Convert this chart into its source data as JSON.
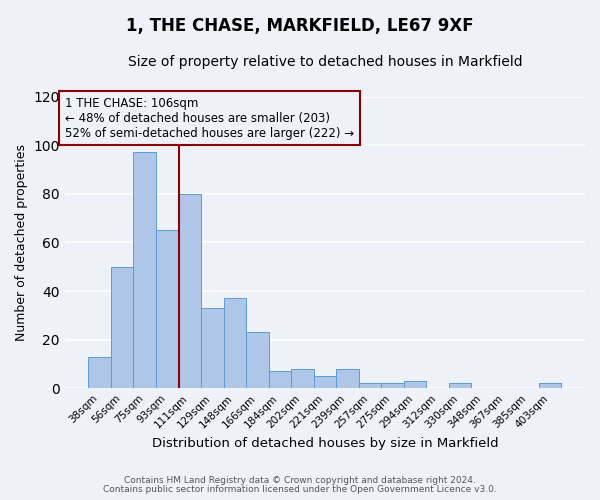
{
  "title": "1, THE CHASE, MARKFIELD, LE67 9XF",
  "subtitle": "Size of property relative to detached houses in Markfield",
  "xlabel": "Distribution of detached houses by size in Markfield",
  "ylabel": "Number of detached properties",
  "bar_labels": [
    "38sqm",
    "56sqm",
    "75sqm",
    "93sqm",
    "111sqm",
    "129sqm",
    "148sqm",
    "166sqm",
    "184sqm",
    "202sqm",
    "221sqm",
    "239sqm",
    "257sqm",
    "275sqm",
    "294sqm",
    "312sqm",
    "330sqm",
    "348sqm",
    "367sqm",
    "385sqm",
    "403sqm"
  ],
  "bar_values": [
    13,
    50,
    97,
    65,
    80,
    33,
    37,
    23,
    7,
    8,
    5,
    8,
    2,
    2,
    3,
    0,
    2,
    0,
    0,
    0,
    2
  ],
  "bar_color": "#aec6e8",
  "bar_edgecolor": "#5b9bd5",
  "bar_width": 1.0,
  "vline_x": 3.5,
  "vline_color": "#8b0000",
  "annotation_text": "1 THE CHASE: 106sqm\n← 48% of detached houses are smaller (203)\n52% of semi-detached houses are larger (222) →",
  "annotation_box_edgecolor": "#8b0000",
  "annotation_fontsize": 8.5,
  "ylim": [
    0,
    120
  ],
  "yticks": [
    0,
    20,
    40,
    60,
    80,
    100,
    120
  ],
  "footer1": "Contains HM Land Registry data © Crown copyright and database right 2024.",
  "footer2": "Contains public sector information licensed under the Open Government Licence v3.0.",
  "background_color": "#eef2f8",
  "plot_background": "#eef2f8",
  "grid_color": "#ffffff",
  "title_fontsize": 12,
  "subtitle_fontsize": 10
}
